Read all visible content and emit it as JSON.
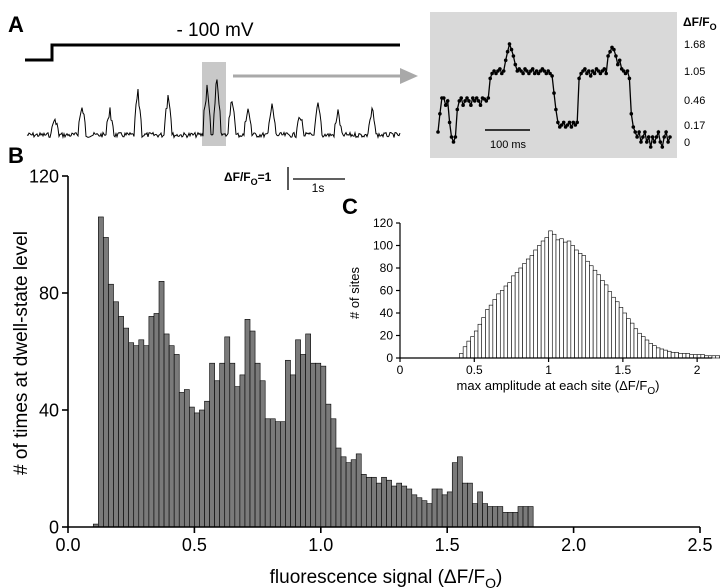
{
  "panels": {
    "a": {
      "letter": "A",
      "voltage_label": "- 100 mV",
      "zoom_y_label": "ΔF/F",
      "zoom_y_label_sub": "O",
      "zoom_levels": [
        "1.68",
        "1.05",
        "0.46",
        "0.17",
        "0"
      ],
      "zoom_scale_label": "100 ms",
      "scalebar_amp": "ΔF/F",
      "scalebar_amp_sub": "O",
      "scalebar_amp_value": "=1",
      "scalebar_time": "1s"
    },
    "b": {
      "letter": "B"
    },
    "c": {
      "letter": "C"
    }
  },
  "colors": {
    "bar_fill": "#7a7a7a",
    "inset_bar_fill": "#ffffff",
    "zoom_background": "#d9d9d9",
    "highlight_box": "#c8c8c8",
    "arrow": "#a9a9a9"
  },
  "chart_data": [
    {
      "id": "B",
      "type": "bar",
      "xlabel": "fluorescence signal (ΔF/F",
      "xlabel_sub": "O",
      "xlabel_tail": ")",
      "ylabel": "# of times at dwell-state level",
      "xlim": [
        0,
        2.5
      ],
      "ylim": [
        0,
        120
      ],
      "xticks": [
        "0.0",
        "0.5",
        "1.0",
        "1.5",
        "2.0",
        "2.5"
      ],
      "yticks": [
        "0",
        "40",
        "80",
        "120"
      ],
      "bin_width": 0.02,
      "x_start": 0.1,
      "values": [
        1,
        106,
        99,
        83,
        77,
        72,
        68,
        63,
        62,
        64,
        62,
        72,
        73,
        84,
        66,
        62,
        59,
        46,
        47,
        41,
        39,
        40,
        43,
        56,
        50,
        56,
        65,
        56,
        48,
        52,
        71,
        67,
        56,
        50,
        37,
        37,
        36,
        36,
        57,
        52,
        64,
        59,
        66,
        56,
        56,
        55,
        42,
        37,
        27,
        24,
        22,
        23,
        25,
        18,
        17,
        17,
        15,
        17,
        16,
        14,
        15,
        14,
        13,
        11,
        10,
        9,
        8,
        13,
        13,
        11,
        12,
        22,
        24,
        15,
        15,
        8,
        12,
        8,
        7,
        7,
        7,
        5,
        5,
        5,
        7,
        7,
        7
      ]
    },
    {
      "id": "C",
      "type": "bar",
      "xlabel": "max amplitude at each site (ΔF/F",
      "xlabel_sub": "O",
      "xlabel_tail": ")",
      "ylabel": "# of sites",
      "xlim": [
        0,
        2.1
      ],
      "ylim": [
        0,
        120
      ],
      "xticks": [
        "0",
        "0.5",
        "1",
        "1.5",
        "2"
      ],
      "yticks": [
        "0",
        "20",
        "40",
        "60",
        "80",
        "100",
        "120"
      ],
      "bin_width": 0.025,
      "x_start": 0.4,
      "values": [
        4,
        10,
        15,
        19,
        24,
        30,
        36,
        43,
        47,
        52,
        57,
        60,
        64,
        67,
        73,
        76,
        80,
        84,
        88,
        91,
        96,
        100,
        104,
        107,
        113,
        110,
        105,
        106,
        103,
        104,
        100,
        96,
        93,
        91,
        86,
        82,
        78,
        74,
        69,
        65,
        59,
        54,
        50,
        45,
        40,
        35,
        31,
        26,
        22,
        19,
        16,
        13,
        11,
        9,
        8,
        7,
        6,
        5,
        5,
        4,
        4,
        4,
        3,
        3,
        3,
        3,
        2,
        2,
        2,
        2,
        2,
        2,
        3,
        1
      ]
    },
    {
      "id": "A-zoom",
      "type": "line",
      "levels": [
        0,
        0.17,
        0.46,
        1.05,
        1.68
      ],
      "values": [
        0.1,
        0.3,
        0.5,
        0.5,
        0.4,
        0.45,
        0.2,
        0.05,
        0,
        0.05,
        0.35,
        0.45,
        0.5,
        0.4,
        0.45,
        0.5,
        0.45,
        0.4,
        0.5,
        0.45,
        0.5,
        0.45,
        0.4,
        0.5,
        0.48,
        0.45,
        0.5,
        0.9,
        1.0,
        1.05,
        1.0,
        1.05,
        1.1,
        1.0,
        1.05,
        1.3,
        1.5,
        1.68,
        1.55,
        1.4,
        1.2,
        1.05,
        1.1,
        1.05,
        1.0,
        1.1,
        1.05,
        1.0,
        1.05,
        1.1,
        1.0,
        1.05,
        1.0,
        1.05,
        1.1,
        1.05,
        1.0,
        1.05,
        1.0,
        0.95,
        0.6,
        0.35,
        0.2,
        0.15,
        0.17,
        0.2,
        0.15,
        0.17,
        0.2,
        0.15,
        0.2,
        0.17,
        0.2,
        0.9,
        1.0,
        1.05,
        1.1,
        1.0,
        1.05,
        0.95,
        1.05,
        1.0,
        1.1,
        1.05,
        1.0,
        1.05,
        1.1,
        1.0,
        1.4,
        1.5,
        1.6,
        1.55,
        1.4,
        1.2,
        1.3,
        1.1,
        1.05,
        1.0,
        1.05,
        0.9,
        0.3,
        0.15,
        0.1,
        0.05,
        0.1,
        0,
        0.05,
        0.1,
        0,
        0.05,
        -0.05,
        0.05,
        0,
        0.05,
        0.1,
        0,
        -0.05,
        0.05,
        0.1,
        0,
        0.05
      ]
    }
  ]
}
